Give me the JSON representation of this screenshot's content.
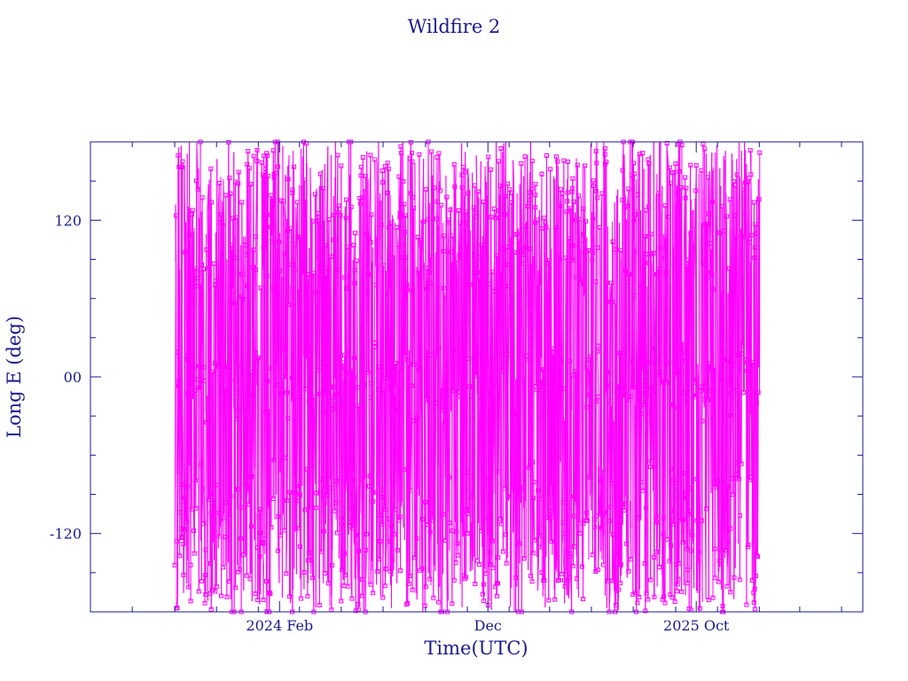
{
  "chart_data": {
    "type": "line",
    "title": "Wildfire 2",
    "xlabel": "Time(UTC)",
    "ylabel": "Long E (deg)",
    "x_tick_labels": [
      "2024 Feb",
      "Dec",
      "2025 Oct"
    ],
    "y_tick_labels": [
      "-120",
      "00",
      "120"
    ],
    "y_ticks": [
      -120,
      0,
      120
    ],
    "ylim": [
      -180,
      180
    ],
    "xlim": [
      "2023-05-01",
      "2026-06-01"
    ],
    "data_range": [
      "2023-09-01",
      "2026-01-01"
    ],
    "x_tick_dates": [
      "2024-02-01",
      "2024-12-01",
      "2025-10-01"
    ],
    "legend": "none",
    "grid": false,
    "series_color": "#ff00ff",
    "axis_color": "#1a1a8c",
    "markers": "square",
    "series": [
      {
        "x": [
          "2023-09-01",
          "2023-09-20",
          "2023-10-10",
          "2023-10-30",
          "2023-11-20",
          "2023-12-10",
          "2024-01-01",
          "2024-01-20",
          "2024-02-10",
          "2024-03-01",
          "2024-03-20",
          "2024-04-10",
          "2024-05-01",
          "2024-05-20",
          "2024-06-10",
          "2024-07-01",
          "2024-07-20",
          "2024-08-10",
          "2024-09-01",
          "2024-09-20",
          "2024-10-10",
          "2024-11-01",
          "2024-11-20",
          "2024-12-10",
          "2025-01-01",
          "2025-01-20",
          "2025-02-10",
          "2025-03-01",
          "2025-03-20",
          "2025-04-10",
          "2025-05-01",
          "2025-05-20",
          "2025-06-10",
          "2025-07-01",
          "2025-07-20",
          "2025-08-10",
          "2025-09-01",
          "2025-09-20",
          "2025-10-10",
          "2025-11-01",
          "2025-11-20",
          "2025-12-10",
          "2026-01-01"
        ],
        "y": [
          30,
          150,
          -150,
          95,
          -140,
          125,
          -110,
          160,
          -95,
          140,
          -160,
          0,
          110,
          -130,
          170,
          -20,
          85,
          -170,
          130,
          -120,
          5,
          150,
          -90,
          100,
          -175,
          120,
          -60,
          165,
          -140,
          10,
          90,
          -150,
          135,
          -105,
          160,
          -5,
          115,
          -165,
          95,
          -125,
          170,
          -80,
          100
        ]
      }
    ]
  }
}
